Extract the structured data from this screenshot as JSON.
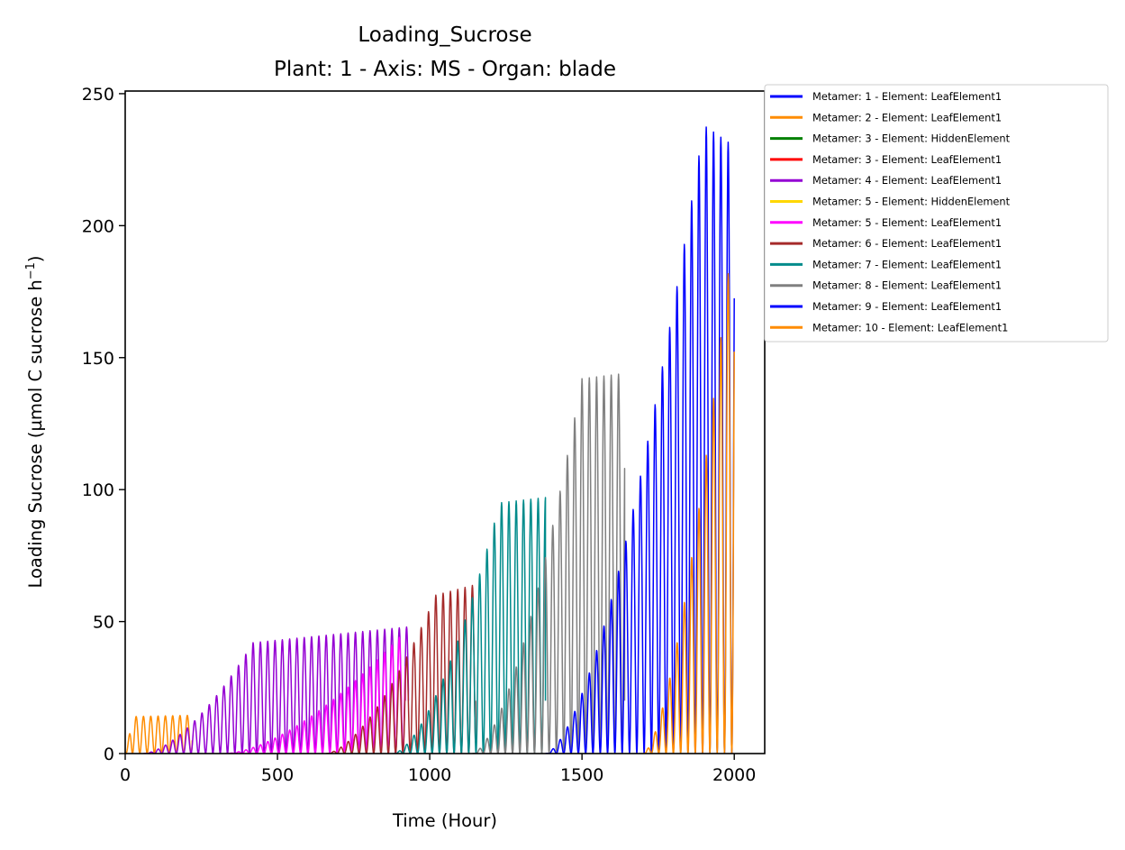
{
  "chart_data": {
    "type": "line",
    "title": "Loading_Sucrose",
    "subtitle": "Plant: 1 - Axis: MS - Organ: blade",
    "xlabel": "Time (Hour)",
    "ylabel": "Loading Sucrose (µmol C sucrose h",
    "ylabel_sup": "−1",
    "ylabel_close": ")",
    "xlim": [
      0,
      2100
    ],
    "ylim": [
      0,
      251
    ],
    "xticks": [
      0,
      500,
      1000,
      1500,
      2000
    ],
    "yticks": [
      0,
      50,
      100,
      150,
      200,
      250
    ],
    "grid": false,
    "legend_position": "outside upper right",
    "series": [
      {
        "name": "Metamer: 1 - Element: LeafElement1",
        "color": "#0000ff",
        "start": 0,
        "rise_end": 0,
        "end": 0,
        "peak_start": 0,
        "peak_end": 0,
        "tail": 0
      },
      {
        "name": "Metamer: 2 - Element: LeafElement1",
        "color": "#ff8c00",
        "start": 0,
        "rise_end": 20,
        "end": 220,
        "peak_start": 14,
        "peak_end": 14.5,
        "tail": 5
      },
      {
        "name": "Metamer: 3 - Element: HiddenElement",
        "color": "#008000",
        "start": 0,
        "rise_end": 0,
        "end": 0,
        "peak_start": 0,
        "peak_end": 0,
        "tail": 0
      },
      {
        "name": "Metamer: 3 - Element: LeafElement1",
        "color": "#ff0000",
        "start": 0,
        "rise_end": 0,
        "end": 0,
        "peak_start": 0,
        "peak_end": 0,
        "tail": 0
      },
      {
        "name": "Metamer: 4 - Element: LeafElement1",
        "color": "#9400d3",
        "start": 60,
        "rise_end": 420,
        "end": 930,
        "peak_start": 42,
        "peak_end": 48,
        "tail": 20
      },
      {
        "name": "Metamer: 5 - Element: HiddenElement",
        "color": "#ffd700",
        "start": 0,
        "rise_end": 0,
        "end": 0,
        "peak_start": 0,
        "peak_end": 0,
        "tail": 0
      },
      {
        "name": "Metamer: 5 - Element: LeafElement1",
        "color": "#ff00ff",
        "start": 330,
        "rise_end": 900,
        "end": 920,
        "peak_start": 44,
        "peak_end": 44,
        "tail": 20
      },
      {
        "name": "Metamer: 6 - Element: LeafElement1",
        "color": "#a52a2a",
        "start": 660,
        "rise_end": 1020,
        "end": 1150,
        "peak_start": 60,
        "peak_end": 64,
        "tail": 20
      },
      {
        "name": "Metamer: 7 - Element: LeafElement1",
        "color": "#008b8b",
        "start": 880,
        "rise_end": 1230,
        "end": 1380,
        "peak_start": 95,
        "peak_end": 97,
        "tail": 20
      },
      {
        "name": "Metamer: 8 - Element: LeafElement1",
        "color": "#808080",
        "start": 1140,
        "rise_end": 1500,
        "end": 1640,
        "peak_start": 142,
        "peak_end": 144,
        "tail": 20
      },
      {
        "name": "Metamer: 9 - Element: LeafElement1",
        "color": "#0000ff",
        "start": 1380,
        "rise_end": 1900,
        "end": 2000,
        "peak_start": 238,
        "peak_end": 230,
        "tail": 0
      },
      {
        "name": "Metamer: 10 - Element: LeafElement1",
        "color": "#ff8c00",
        "start": 1700,
        "rise_end": 2000,
        "end": 2000,
        "peak_start": 203,
        "peak_end": 203,
        "tail": 0
      }
    ]
  }
}
